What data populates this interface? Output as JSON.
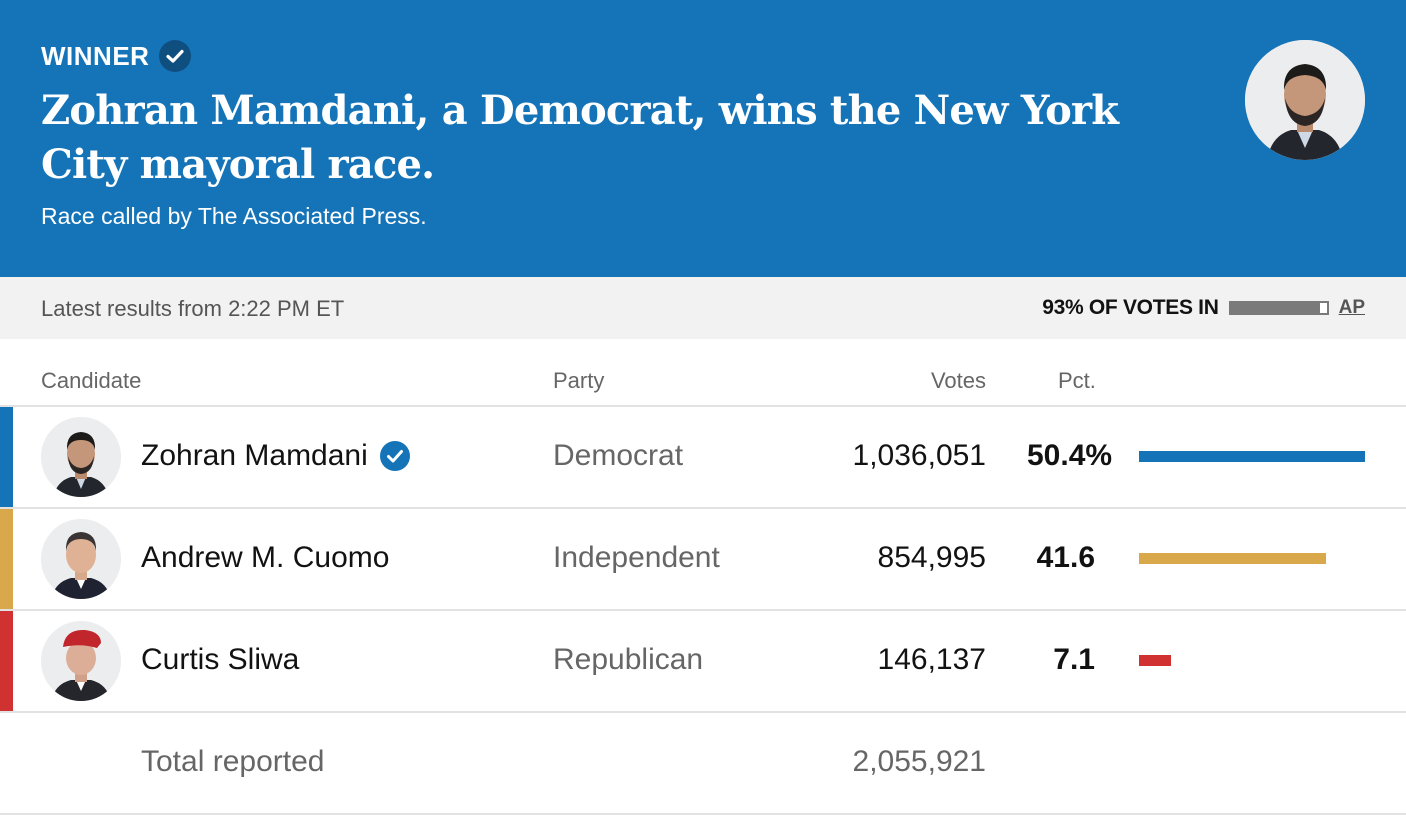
{
  "banner": {
    "winner_label": "WINNER",
    "headline": "Zohran Mamdani, a Democrat, wins the New York City mayoral race.",
    "called_text": "Race called by The Associated Press.",
    "background_color": "#1574b8"
  },
  "status": {
    "latest": "Latest results from 2:22 PM ET",
    "votes_in_label": "93% OF VOTES IN",
    "votes_in_fraction": 0.93,
    "source_link": "AP"
  },
  "table": {
    "headers": {
      "candidate": "Candidate",
      "party": "Party",
      "votes": "Votes",
      "pct": "Pct."
    },
    "rows": [
      {
        "name": "Zohran Mamdani",
        "party": "Democrat",
        "votes": "1,036,051",
        "pct": "50.4%",
        "pct_value": 50.4,
        "color": "#1574b8",
        "winner": true
      },
      {
        "name": "Andrew M. Cuomo",
        "party": "Independent",
        "votes": "854,995",
        "pct": "41.6",
        "pct_value": 41.6,
        "color": "#d9a84a",
        "winner": false
      },
      {
        "name": "Curtis Sliwa",
        "party": "Republican",
        "votes": "146,137",
        "pct": "7.1",
        "pct_value": 7.1,
        "color": "#d03232",
        "winner": false
      }
    ],
    "total_label": "Total reported",
    "total_votes": "2,055,921"
  },
  "icons": {
    "winner_check": "check-circle-icon",
    "progress": "progress-bar"
  }
}
